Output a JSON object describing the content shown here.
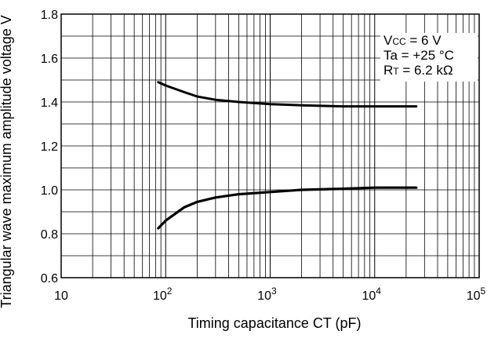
{
  "chart_data": {
    "type": "line",
    "xlabel": "Timing capacitance CT (pF)",
    "ylabel": "Triangular wave maximum amplitude voltage V",
    "xscale": "log",
    "xlim": [
      10,
      100000
    ],
    "ylim": [
      0.6,
      1.8
    ],
    "grid": true,
    "x_tick_labels": [
      "10",
      "10",
      "10",
      "10",
      "10"
    ],
    "x_tick_exponents": [
      "",
      "2",
      "3",
      "4",
      "5"
    ],
    "y_tick_labels": [
      "0.6",
      "0.8",
      "1.0",
      "1.2",
      "1.4",
      "1.6",
      "1.8"
    ],
    "legend": {
      "placement": "top-right",
      "lines": [
        {
          "prefix": "V",
          "sub": "CC",
          "suffix": " = 6 V"
        },
        {
          "prefix": "Ta = +25 °C",
          "sub": "",
          "suffix": ""
        },
        {
          "prefix": "R",
          "sub": "T",
          "suffix": " = 6.2 kΩ"
        }
      ]
    },
    "series": [
      {
        "x": [
          85,
          100,
          150,
          200,
          300,
          500,
          1000,
          2000,
          5000,
          10000,
          25000
        ],
        "values": [
          1.49,
          1.475,
          1.445,
          1.425,
          1.41,
          1.4,
          1.39,
          1.385,
          1.38,
          1.38,
          1.38
        ]
      },
      {
        "x": [
          85,
          100,
          150,
          200,
          300,
          500,
          1000,
          2000,
          5000,
          10000,
          25000
        ],
        "values": [
          0.825,
          0.86,
          0.92,
          0.945,
          0.965,
          0.98,
          0.99,
          1.0,
          1.005,
          1.01,
          1.01
        ]
      }
    ]
  }
}
